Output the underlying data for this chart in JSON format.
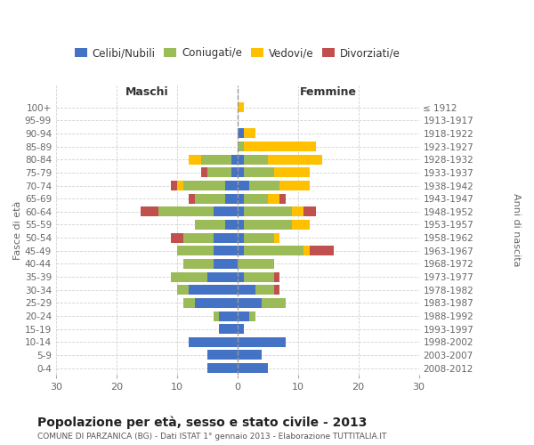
{
  "age_groups": [
    "0-4",
    "5-9",
    "10-14",
    "15-19",
    "20-24",
    "25-29",
    "30-34",
    "35-39",
    "40-44",
    "45-49",
    "50-54",
    "55-59",
    "60-64",
    "65-69",
    "70-74",
    "75-79",
    "80-84",
    "85-89",
    "90-94",
    "95-99",
    "100+"
  ],
  "birth_years": [
    "2008-2012",
    "2003-2007",
    "1998-2002",
    "1993-1997",
    "1988-1992",
    "1983-1987",
    "1978-1982",
    "1973-1977",
    "1968-1972",
    "1963-1967",
    "1958-1962",
    "1953-1957",
    "1948-1952",
    "1943-1947",
    "1938-1942",
    "1933-1937",
    "1928-1932",
    "1923-1927",
    "1918-1922",
    "1913-1917",
    "≤ 1912"
  ],
  "maschi": {
    "celibi": [
      5,
      5,
      8,
      3,
      3,
      7,
      8,
      5,
      4,
      4,
      4,
      2,
      4,
      2,
      2,
      1,
      1,
      0,
      0,
      0,
      0
    ],
    "coniugati": [
      0,
      0,
      0,
      0,
      1,
      2,
      2,
      6,
      5,
      6,
      5,
      5,
      9,
      5,
      7,
      4,
      5,
      0,
      0,
      0,
      0
    ],
    "vedovi": [
      0,
      0,
      0,
      0,
      0,
      0,
      0,
      0,
      0,
      0,
      0,
      0,
      0,
      0,
      1,
      0,
      2,
      0,
      0,
      0,
      0
    ],
    "divorziati": [
      0,
      0,
      0,
      0,
      0,
      0,
      0,
      0,
      0,
      0,
      2,
      0,
      3,
      1,
      1,
      1,
      0,
      0,
      0,
      0,
      0
    ]
  },
  "femmine": {
    "nubili": [
      5,
      4,
      8,
      1,
      2,
      4,
      3,
      1,
      0,
      1,
      1,
      1,
      1,
      1,
      2,
      1,
      1,
      0,
      1,
      0,
      0
    ],
    "coniugate": [
      0,
      0,
      0,
      0,
      1,
      4,
      3,
      5,
      6,
      10,
      5,
      8,
      8,
      4,
      5,
      5,
      4,
      1,
      0,
      0,
      0
    ],
    "vedove": [
      0,
      0,
      0,
      0,
      0,
      0,
      0,
      0,
      0,
      1,
      1,
      3,
      2,
      2,
      5,
      6,
      9,
      12,
      2,
      0,
      1
    ],
    "divorziate": [
      0,
      0,
      0,
      0,
      0,
      0,
      1,
      1,
      0,
      4,
      0,
      0,
      2,
      1,
      0,
      0,
      0,
      0,
      0,
      0,
      0
    ]
  },
  "colors": {
    "celibi": "#4472C4",
    "coniugati": "#9BBB59",
    "vedovi": "#FFC000",
    "divorziati": "#C0504D"
  },
  "xlim": 30,
  "title": "Popolazione per età, sesso e stato civile - 2013",
  "subtitle": "COMUNE DI PARZANICA (BG) - Dati ISTAT 1° gennaio 2013 - Elaborazione TUTTITALIA.IT",
  "ylabel_left": "Fasce di età",
  "ylabel_right": "Anni di nascita",
  "legend_labels": [
    "Celibi/Nubili",
    "Coniugati/e",
    "Vedovi/e",
    "Divorziati/e"
  ],
  "maschi_label": "Maschi",
  "femmine_label": "Femmine",
  "bg_color": "#ffffff",
  "grid_color": "#cccccc",
  "bar_height": 0.75
}
